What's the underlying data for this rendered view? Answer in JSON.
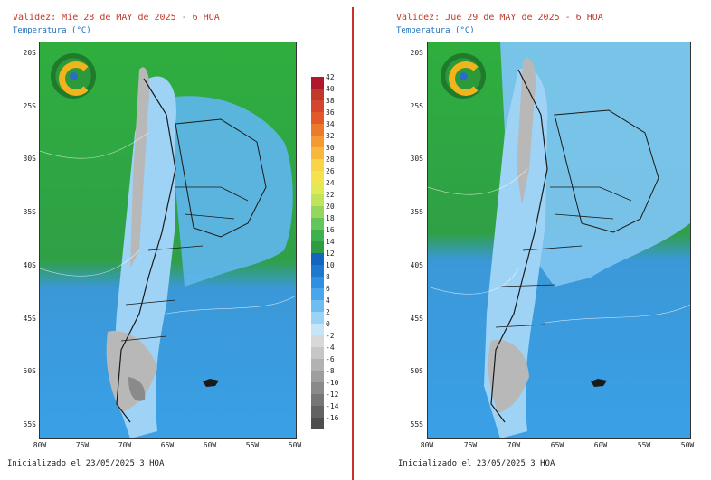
{
  "panels": [
    {
      "title": "Validez: Mie 28 de MAY de 2025 - 6 HOA",
      "subtitle": "Temperatura (°C)",
      "init": "Inicializado el 23/05/2025 3 HOA"
    },
    {
      "title": "Validez: Jue 29 de MAY de 2025 - 6 HOA",
      "subtitle": "Temperatura (°C)",
      "init": "Inicializado el 23/05/2025 3 HOA"
    }
  ],
  "lat_labels": [
    "20S",
    "25S",
    "30S",
    "35S",
    "40S",
    "45S",
    "50S",
    "55S"
  ],
  "lon_labels": [
    "80W",
    "75W",
    "70W",
    "65W",
    "60W",
    "55W",
    "50W"
  ],
  "legend": {
    "values": [
      "42",
      "40",
      "38",
      "36",
      "34",
      "32",
      "30",
      "28",
      "26",
      "24",
      "22",
      "20",
      "18",
      "16",
      "14",
      "12",
      "10",
      "8",
      "6",
      "4",
      "2",
      "0",
      "-2",
      "-4",
      "-6",
      "-8",
      "-10",
      "-12",
      "-14",
      "-16"
    ],
    "colors": [
      "#b2182b",
      "#c0392b",
      "#d64530",
      "#e25a2c",
      "#ec7a2e",
      "#f39a33",
      "#f7b93b",
      "#f9d44a",
      "#f4e24f",
      "#e0ea55",
      "#bfe35a",
      "#95d65c",
      "#63c65a",
      "#3db24c",
      "#2e9c42",
      "#1565c0",
      "#1e78d0",
      "#2f8fe0",
      "#4aa6ec",
      "#6dbdf3",
      "#9bd3f6",
      "#c4e6f8",
      "#d8d8d8",
      "#c6c6c6",
      "#b2b2b2",
      "#9e9e9e",
      "#8a8a8a",
      "#767676",
      "#626262",
      "#4e4e4e"
    ]
  },
  "colors": {
    "warm_green": "#2fae3e",
    "cool_blue": "#3aa0e6",
    "pale_blue": "#9fd3f6",
    "snow_gray": "#b8b8b8",
    "divider_red": "#c9302c"
  }
}
